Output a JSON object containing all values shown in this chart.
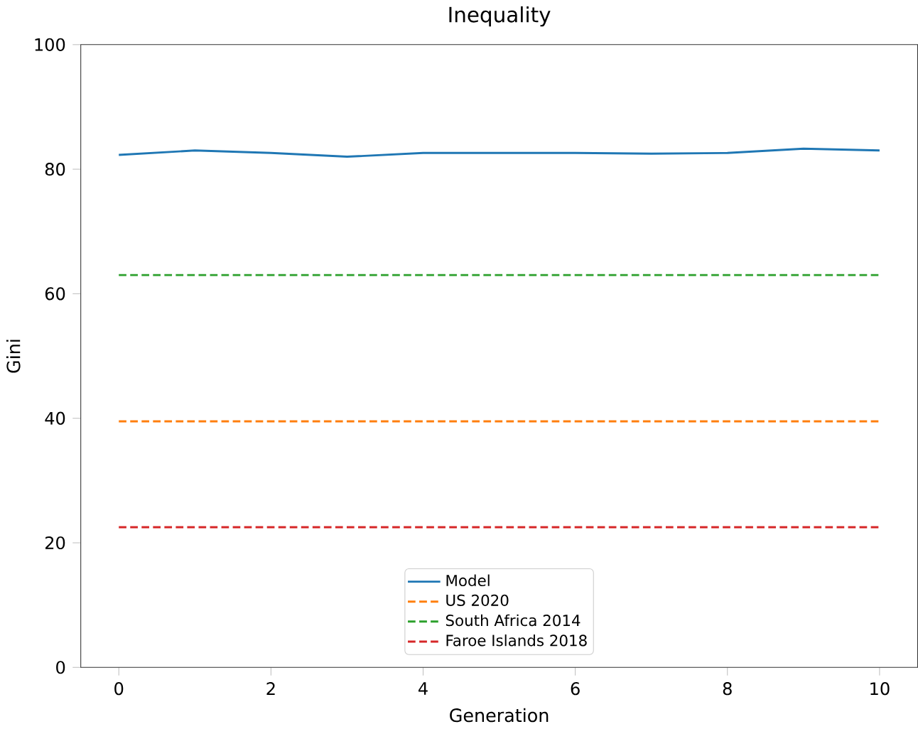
{
  "chart_data": {
    "type": "line",
    "title": "Inequality",
    "xlabel": "Generation",
    "ylabel": "Gini",
    "xlim": [
      -0.5,
      10.5
    ],
    "ylim": [
      0,
      100
    ],
    "xticks": [
      0,
      2,
      4,
      6,
      8,
      10
    ],
    "yticks": [
      0,
      20,
      40,
      60,
      80,
      100
    ],
    "legend": "bottom",
    "grid": false,
    "series": [
      {
        "name": "Model",
        "color": "#1f77b4",
        "line_style": "solid",
        "x": [
          0,
          1,
          2,
          3,
          4,
          5,
          6,
          7,
          8,
          9,
          10
        ],
        "values": [
          82.3,
          83.0,
          82.6,
          82.0,
          82.6,
          82.6,
          82.6,
          82.5,
          82.6,
          83.3,
          83.0
        ]
      },
      {
        "name": "US 2020",
        "color": "#ff7f0e",
        "line_style": "dashed",
        "x": [
          0,
          10
        ],
        "values": [
          39.5,
          39.5
        ]
      },
      {
        "name": "South Africa 2014",
        "color": "#2ca02c",
        "line_style": "dashed",
        "x": [
          0,
          10
        ],
        "values": [
          63,
          63
        ]
      },
      {
        "name": "Faroe Islands 2018",
        "color": "#d62728",
        "line_style": "dashed",
        "x": [
          0,
          10
        ],
        "values": [
          22.5,
          22.5
        ]
      }
    ]
  }
}
